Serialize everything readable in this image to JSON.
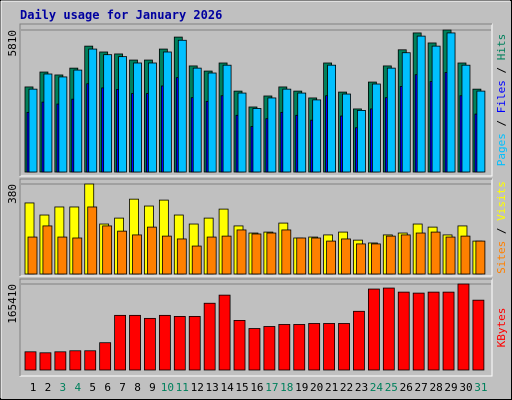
{
  "chart_data": [
    {
      "type": "bar",
      "title": "Daily usage for January 2026",
      "legend_separator": " / ",
      "ylim": [
        0,
        5810
      ],
      "yticks": [
        5810
      ],
      "series": [
        {
          "name": "Hits",
          "color": "#00805c",
          "values": [
            3480,
            4090,
            3970,
            4250,
            5150,
            4910,
            4830,
            4580,
            4580,
            5030,
            5520,
            4340,
            4130,
            4460,
            3310,
            2660,
            3110,
            3480,
            3310,
            3030,
            4460,
            3270,
            2580,
            3680,
            4340,
            5000,
            5690,
            5280,
            5810,
            4460,
            3390
          ]
        },
        {
          "name": "Files",
          "color": "#0000ff",
          "values": [
            2440,
            2860,
            2780,
            2980,
            3610,
            3440,
            3380,
            3210,
            3210,
            3520,
            3860,
            3040,
            2890,
            3120,
            2320,
            1860,
            2180,
            2440,
            2320,
            2120,
            3120,
            2290,
            1810,
            2580,
            3040,
            3500,
            3980,
            3700,
            4070,
            3120,
            2370
          ]
        },
        {
          "name": "Pages",
          "color": "#00c0ff",
          "values": [
            3390,
            4010,
            3890,
            4170,
            5030,
            4800,
            4720,
            4460,
            4460,
            4910,
            5390,
            4250,
            4050,
            4370,
            3230,
            2600,
            3030,
            3390,
            3230,
            2950,
            4370,
            3190,
            2520,
            3600,
            4250,
            4880,
            5560,
            5150,
            5690,
            4370,
            3310
          ]
        }
      ]
    },
    {
      "type": "bar",
      "ylim": [
        0,
        380
      ],
      "yticks": [
        380
      ],
      "series": [
        {
          "name": "Visits",
          "color": "#ffff00",
          "values": [
            300,
            249,
            283,
            283,
            380,
            211,
            236,
            316,
            287,
            312,
            249,
            211,
            236,
            274,
            203,
            173,
            177,
            215,
            152,
            156,
            165,
            177,
            143,
            131,
            165,
            173,
            211,
            198,
            165,
            203,
            139
          ]
        },
        {
          "name": "Sites",
          "color": "#ff8000",
          "values": [
            156,
            203,
            156,
            152,
            283,
            203,
            181,
            165,
            198,
            160,
            148,
            118,
            156,
            160,
            186,
            169,
            173,
            186,
            152,
            152,
            139,
            148,
            127,
            127,
            160,
            165,
            173,
            177,
            156,
            160,
            139
          ]
        }
      ]
    },
    {
      "type": "bar",
      "ylim": [
        0,
        165410
      ],
      "yticks": [
        165410
      ],
      "categories": [
        "1",
        "2",
        "3",
        "4",
        "5",
        "6",
        "7",
        "8",
        "9",
        "10",
        "11",
        "12",
        "13",
        "14",
        "15",
        "16",
        "17",
        "18",
        "19",
        "20",
        "21",
        "22",
        "23",
        "24",
        "25",
        "26",
        "27",
        "28",
        "29",
        "30",
        "31"
      ],
      "category_colors": [
        "#000000",
        "#000000",
        "#00805c",
        "#00805c",
        "#000000",
        "#000000",
        "#000000",
        "#000000",
        "#000000",
        "#00805c",
        "#00805c",
        "#000000",
        "#000000",
        "#000000",
        "#000000",
        "#000000",
        "#00805c",
        "#00805c",
        "#000000",
        "#000000",
        "#000000",
        "#000000",
        "#000000",
        "#00805c",
        "#00805c",
        "#000000",
        "#000000",
        "#000000",
        "#000000",
        "#000000",
        "#00805c"
      ],
      "series": [
        {
          "name": "KBytes",
          "color": "#ff0000",
          "values": [
            35000,
            33100,
            35000,
            37000,
            37000,
            52500,
            105100,
            105100,
            99300,
            105100,
            103100,
            103100,
            128400,
            144000,
            95400,
            79800,
            83700,
            87600,
            87600,
            89500,
            89500,
            89500,
            112900,
            155700,
            157600,
            149800,
            147900,
            149800,
            149800,
            165410,
            134300
          ]
        }
      ]
    }
  ]
}
